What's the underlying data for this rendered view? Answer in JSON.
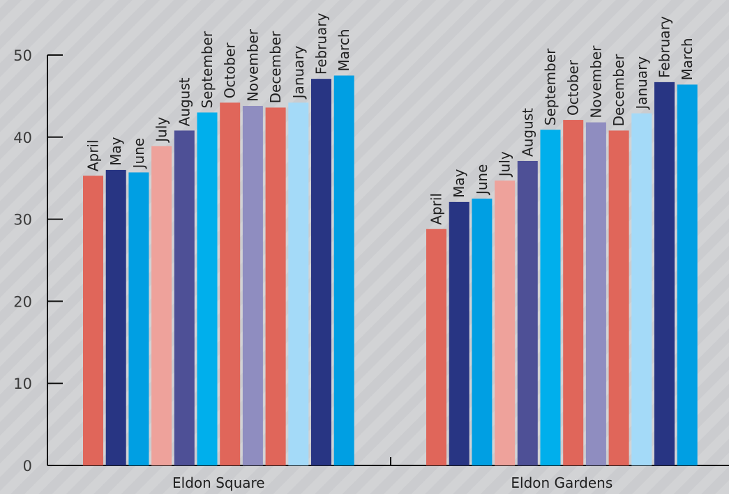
{
  "chart_data": {
    "type": "bar",
    "title": "",
    "xlabel": "",
    "ylabel": "",
    "ylim": [
      0,
      50
    ],
    "yticks": [
      0,
      10,
      20,
      30,
      40,
      50
    ],
    "grid": false,
    "legend": "none",
    "categories": [
      "Eldon Square",
      "Eldon Gardens"
    ],
    "series": [
      {
        "name": "April",
        "color": "#e0665a",
        "values": [
          35.3,
          28.8
        ]
      },
      {
        "name": "May",
        "color": "#283583",
        "values": [
          36.0,
          32.1
        ]
      },
      {
        "name": "June",
        "color": "#009fe3",
        "values": [
          35.7,
          32.5
        ]
      },
      {
        "name": "July",
        "color": "#eea29b",
        "values": [
          38.9,
          34.7
        ]
      },
      {
        "name": "August",
        "color": "#4e5096",
        "values": [
          40.8,
          37.1
        ]
      },
      {
        "name": "September",
        "color": "#00afec",
        "values": [
          43.0,
          40.9
        ]
      },
      {
        "name": "October",
        "color": "#e0665a",
        "values": [
          44.2,
          42.1
        ]
      },
      {
        "name": "November",
        "color": "#8f8dc0",
        "values": [
          43.8,
          41.8
        ]
      },
      {
        "name": "December",
        "color": "#e0665a",
        "values": [
          43.6,
          40.8
        ]
      },
      {
        "name": "January",
        "color": "#a4daf8",
        "values": [
          44.2,
          42.9
        ]
      },
      {
        "name": "February",
        "color": "#283583",
        "values": [
          47.1,
          46.7
        ]
      },
      {
        "name": "March",
        "color": "#009fe3",
        "values": [
          47.5,
          46.4
        ]
      }
    ]
  }
}
